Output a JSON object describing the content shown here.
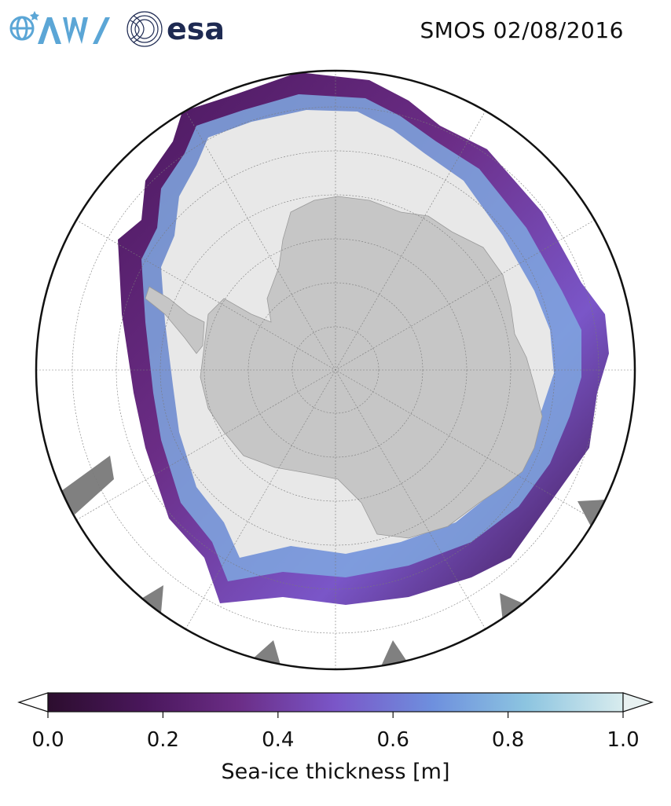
{
  "header": {
    "awi_logo_text": "AWI",
    "esa_logo_text": "esa",
    "title": "SMOS 02/08/2016"
  },
  "map": {
    "projection": "south polar stereographic",
    "graticule": "lat/lon grid lines",
    "legend_colors": {
      "land": "#c6c6c6",
      "open_ocean": "#ffffff",
      "thick_ice_above_1m": "#e8e8e8",
      "no_data": "#808080"
    }
  },
  "colorbar": {
    "label": "Sea-ice thickness [m]",
    "ticks": [
      "0.0",
      "0.2",
      "0.4",
      "0.6",
      "0.8",
      "1.0"
    ],
    "range": [
      0.0,
      1.0
    ],
    "extend": "both",
    "colormap_stops": [
      "#2c0d2e",
      "#4a175c",
      "#6b2d86",
      "#7a56c8",
      "#6e90de",
      "#8cc4e0",
      "#d8ecee"
    ]
  }
}
